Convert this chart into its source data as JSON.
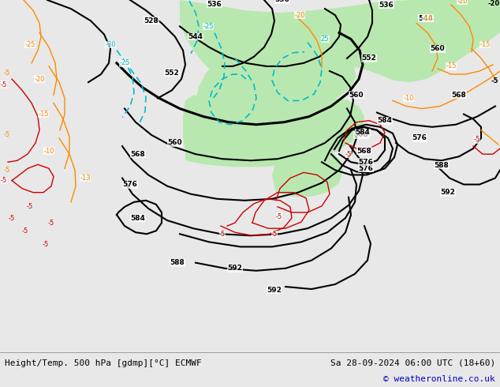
{
  "title_left": "Height/Temp. 500 hPa [gdmp][°C] ECMWF",
  "title_right": "Sa 28-09-2024 06:00 UTC (18+60)",
  "copyright": "© weatheronline.co.uk",
  "map_bg_color": "#c0c0c0",
  "green_fill": "#b8e8b0",
  "bottom_bar_color": "#e8e8e8",
  "black_color": "#000000",
  "orange_color": "#ff8800",
  "cyan_color": "#00bbcc",
  "red_color": "#cc0000",
  "figsize": [
    6.34,
    4.9
  ],
  "dpi": 100,
  "font_size_labels": 6.5,
  "font_size_bottom": 8,
  "copyright_color": "#0000cc"
}
